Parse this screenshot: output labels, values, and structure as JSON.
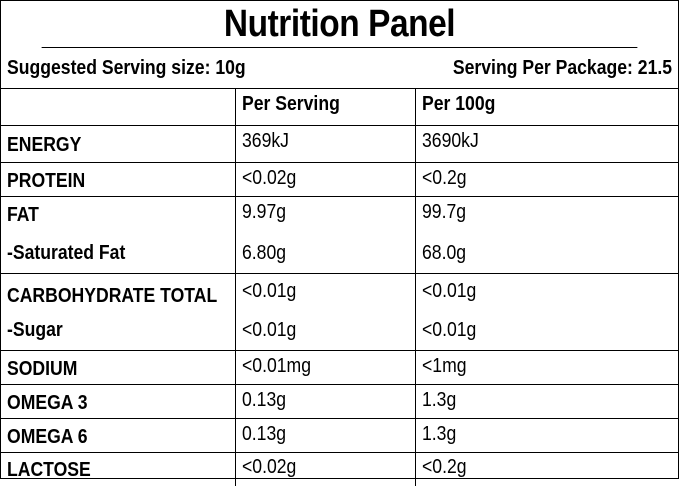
{
  "title": "Nutrition Panel",
  "serving": {
    "size_label": "Suggested Serving size: 10g",
    "per_package_label": "Serving Per Package: 21.5"
  },
  "columns": {
    "label": "",
    "per_serving": "Per Serving",
    "per_100g": "Per 100g"
  },
  "rows": [
    {
      "label": "ENERGY",
      "per_serving": "369kJ",
      "per_100g": "3690kJ"
    },
    {
      "label": "PROTEIN",
      "per_serving": "<0.02g",
      "per_100g": "<0.2g"
    },
    {
      "label": "FAT",
      "per_serving": "9.97g",
      "per_100g": "99.7g"
    },
    {
      "label": "-Saturated Fat",
      "per_serving": "6.80g",
      "per_100g": "68.0g"
    },
    {
      "label": "CARBOHYDRATE TOTAL",
      "per_serving": "<0.01g",
      "per_100g": "<0.01g"
    },
    {
      "label": "-Sugar",
      "per_serving": "<0.01g",
      "per_100g": "<0.01g"
    },
    {
      "label": "SODIUM",
      "per_serving": "<0.01mg",
      "per_100g": "<1mg"
    },
    {
      "label": "OMEGA 3",
      "per_serving": "0.13g",
      "per_100g": "1.3g"
    },
    {
      "label": "OMEGA 6",
      "per_serving": "0.13g",
      "per_100g": "1.3g"
    },
    {
      "label": "LACTOSE",
      "per_serving": "<0.02g",
      "per_100g": "<0.2g"
    }
  ]
}
